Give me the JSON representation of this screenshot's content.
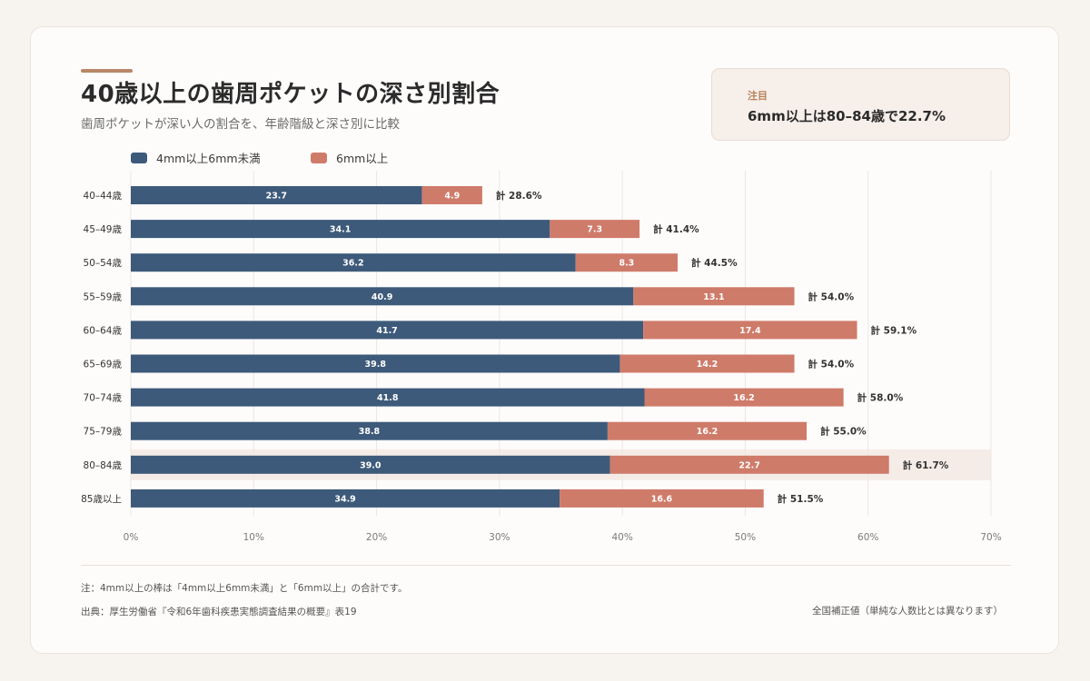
{
  "header": {
    "title": "40歳以上の歯周ポケットの深さ別割合",
    "subtitle": "歯周ポケットが深い人の割合を、年齢階級と深さ別に比較"
  },
  "callout": {
    "label": "注目",
    "text": "6mm以上は80–84歳で22.7%"
  },
  "legend": [
    {
      "label": "4mm以上6mm未満",
      "color": "#3d5a7a"
    },
    {
      "label": "6mm以上",
      "color": "#cf7b6a"
    }
  ],
  "chart_data": {
    "type": "bar",
    "orientation": "horizontal",
    "stacked": true,
    "categories": [
      "40–44歳",
      "45–49歳",
      "50–54歳",
      "55–59歳",
      "60–64歳",
      "65–69歳",
      "70–74歳",
      "75–79歳",
      "80–84歳",
      "85歳以上"
    ],
    "series": [
      {
        "name": "4mm以上6mm未満",
        "color": "#3d5a7a",
        "values": [
          23.7,
          34.1,
          36.2,
          40.9,
          41.7,
          39.8,
          41.8,
          38.8,
          39.0,
          34.9
        ]
      },
      {
        "name": "6mm以上",
        "color": "#cf7b6a",
        "values": [
          4.9,
          7.3,
          8.3,
          13.1,
          17.4,
          14.2,
          16.2,
          16.2,
          22.7,
          16.6
        ]
      }
    ],
    "totals": [
      "計 28.6%",
      "計 41.4%",
      "計 44.5%",
      "計 54.0%",
      "計 59.1%",
      "計 54.0%",
      "計 58.0%",
      "計 55.0%",
      "計 61.7%",
      "計 51.5%"
    ],
    "highlight_category": "80–84歳",
    "xlim": [
      0,
      70
    ],
    "xticks": [
      "0%",
      "10%",
      "20%",
      "30%",
      "40%",
      "50%",
      "60%",
      "70%"
    ],
    "grid": true,
    "legend_position": "top-left"
  },
  "footer": {
    "note": "注：4mm以上の棒は「4mm以上6mm未満」と「6mm以上」の合計です。",
    "source": "出典：厚生労働省『令和6年歯科疾患実態調査結果の概要』表19",
    "basis": "全国補正値（単純な人数比とは異なります）"
  }
}
